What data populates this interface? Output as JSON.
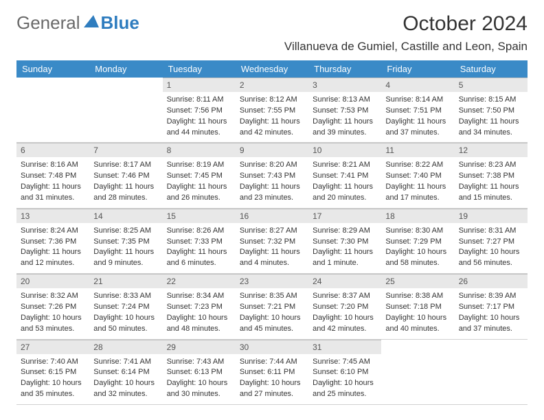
{
  "logo": {
    "text1": "General",
    "text2": "Blue",
    "accent_color": "#2f7dbf"
  },
  "title": "October 2024",
  "location": "Villanueva de Gumiel, Castille and Leon, Spain",
  "day_headers": [
    "Sunday",
    "Monday",
    "Tuesday",
    "Wednesday",
    "Thursday",
    "Friday",
    "Saturday"
  ],
  "colors": {
    "header_bg": "#3a8ac7",
    "header_text": "#ffffff",
    "daynum_bg": "#e8e8e8",
    "text": "#333333",
    "border": "#d0d0d0"
  },
  "weeks": [
    [
      null,
      null,
      {
        "num": "1",
        "sunrise": "Sunrise: 8:11 AM",
        "sunset": "Sunset: 7:56 PM",
        "daylight1": "Daylight: 11 hours",
        "daylight2": "and 44 minutes."
      },
      {
        "num": "2",
        "sunrise": "Sunrise: 8:12 AM",
        "sunset": "Sunset: 7:55 PM",
        "daylight1": "Daylight: 11 hours",
        "daylight2": "and 42 minutes."
      },
      {
        "num": "3",
        "sunrise": "Sunrise: 8:13 AM",
        "sunset": "Sunset: 7:53 PM",
        "daylight1": "Daylight: 11 hours",
        "daylight2": "and 39 minutes."
      },
      {
        "num": "4",
        "sunrise": "Sunrise: 8:14 AM",
        "sunset": "Sunset: 7:51 PM",
        "daylight1": "Daylight: 11 hours",
        "daylight2": "and 37 minutes."
      },
      {
        "num": "5",
        "sunrise": "Sunrise: 8:15 AM",
        "sunset": "Sunset: 7:50 PM",
        "daylight1": "Daylight: 11 hours",
        "daylight2": "and 34 minutes."
      }
    ],
    [
      {
        "num": "6",
        "sunrise": "Sunrise: 8:16 AM",
        "sunset": "Sunset: 7:48 PM",
        "daylight1": "Daylight: 11 hours",
        "daylight2": "and 31 minutes."
      },
      {
        "num": "7",
        "sunrise": "Sunrise: 8:17 AM",
        "sunset": "Sunset: 7:46 PM",
        "daylight1": "Daylight: 11 hours",
        "daylight2": "and 28 minutes."
      },
      {
        "num": "8",
        "sunrise": "Sunrise: 8:19 AM",
        "sunset": "Sunset: 7:45 PM",
        "daylight1": "Daylight: 11 hours",
        "daylight2": "and 26 minutes."
      },
      {
        "num": "9",
        "sunrise": "Sunrise: 8:20 AM",
        "sunset": "Sunset: 7:43 PM",
        "daylight1": "Daylight: 11 hours",
        "daylight2": "and 23 minutes."
      },
      {
        "num": "10",
        "sunrise": "Sunrise: 8:21 AM",
        "sunset": "Sunset: 7:41 PM",
        "daylight1": "Daylight: 11 hours",
        "daylight2": "and 20 minutes."
      },
      {
        "num": "11",
        "sunrise": "Sunrise: 8:22 AM",
        "sunset": "Sunset: 7:40 PM",
        "daylight1": "Daylight: 11 hours",
        "daylight2": "and 17 minutes."
      },
      {
        "num": "12",
        "sunrise": "Sunrise: 8:23 AM",
        "sunset": "Sunset: 7:38 PM",
        "daylight1": "Daylight: 11 hours",
        "daylight2": "and 15 minutes."
      }
    ],
    [
      {
        "num": "13",
        "sunrise": "Sunrise: 8:24 AM",
        "sunset": "Sunset: 7:36 PM",
        "daylight1": "Daylight: 11 hours",
        "daylight2": "and 12 minutes."
      },
      {
        "num": "14",
        "sunrise": "Sunrise: 8:25 AM",
        "sunset": "Sunset: 7:35 PM",
        "daylight1": "Daylight: 11 hours",
        "daylight2": "and 9 minutes."
      },
      {
        "num": "15",
        "sunrise": "Sunrise: 8:26 AM",
        "sunset": "Sunset: 7:33 PM",
        "daylight1": "Daylight: 11 hours",
        "daylight2": "and 6 minutes."
      },
      {
        "num": "16",
        "sunrise": "Sunrise: 8:27 AM",
        "sunset": "Sunset: 7:32 PM",
        "daylight1": "Daylight: 11 hours",
        "daylight2": "and 4 minutes."
      },
      {
        "num": "17",
        "sunrise": "Sunrise: 8:29 AM",
        "sunset": "Sunset: 7:30 PM",
        "daylight1": "Daylight: 11 hours",
        "daylight2": "and 1 minute."
      },
      {
        "num": "18",
        "sunrise": "Sunrise: 8:30 AM",
        "sunset": "Sunset: 7:29 PM",
        "daylight1": "Daylight: 10 hours",
        "daylight2": "and 58 minutes."
      },
      {
        "num": "19",
        "sunrise": "Sunrise: 8:31 AM",
        "sunset": "Sunset: 7:27 PM",
        "daylight1": "Daylight: 10 hours",
        "daylight2": "and 56 minutes."
      }
    ],
    [
      {
        "num": "20",
        "sunrise": "Sunrise: 8:32 AM",
        "sunset": "Sunset: 7:26 PM",
        "daylight1": "Daylight: 10 hours",
        "daylight2": "and 53 minutes."
      },
      {
        "num": "21",
        "sunrise": "Sunrise: 8:33 AM",
        "sunset": "Sunset: 7:24 PM",
        "daylight1": "Daylight: 10 hours",
        "daylight2": "and 50 minutes."
      },
      {
        "num": "22",
        "sunrise": "Sunrise: 8:34 AM",
        "sunset": "Sunset: 7:23 PM",
        "daylight1": "Daylight: 10 hours",
        "daylight2": "and 48 minutes."
      },
      {
        "num": "23",
        "sunrise": "Sunrise: 8:35 AM",
        "sunset": "Sunset: 7:21 PM",
        "daylight1": "Daylight: 10 hours",
        "daylight2": "and 45 minutes."
      },
      {
        "num": "24",
        "sunrise": "Sunrise: 8:37 AM",
        "sunset": "Sunset: 7:20 PM",
        "daylight1": "Daylight: 10 hours",
        "daylight2": "and 42 minutes."
      },
      {
        "num": "25",
        "sunrise": "Sunrise: 8:38 AM",
        "sunset": "Sunset: 7:18 PM",
        "daylight1": "Daylight: 10 hours",
        "daylight2": "and 40 minutes."
      },
      {
        "num": "26",
        "sunrise": "Sunrise: 8:39 AM",
        "sunset": "Sunset: 7:17 PM",
        "daylight1": "Daylight: 10 hours",
        "daylight2": "and 37 minutes."
      }
    ],
    [
      {
        "num": "27",
        "sunrise": "Sunrise: 7:40 AM",
        "sunset": "Sunset: 6:15 PM",
        "daylight1": "Daylight: 10 hours",
        "daylight2": "and 35 minutes."
      },
      {
        "num": "28",
        "sunrise": "Sunrise: 7:41 AM",
        "sunset": "Sunset: 6:14 PM",
        "daylight1": "Daylight: 10 hours",
        "daylight2": "and 32 minutes."
      },
      {
        "num": "29",
        "sunrise": "Sunrise: 7:43 AM",
        "sunset": "Sunset: 6:13 PM",
        "daylight1": "Daylight: 10 hours",
        "daylight2": "and 30 minutes."
      },
      {
        "num": "30",
        "sunrise": "Sunrise: 7:44 AM",
        "sunset": "Sunset: 6:11 PM",
        "daylight1": "Daylight: 10 hours",
        "daylight2": "and 27 minutes."
      },
      {
        "num": "31",
        "sunrise": "Sunrise: 7:45 AM",
        "sunset": "Sunset: 6:10 PM",
        "daylight1": "Daylight: 10 hours",
        "daylight2": "and 25 minutes."
      },
      null,
      null
    ]
  ]
}
